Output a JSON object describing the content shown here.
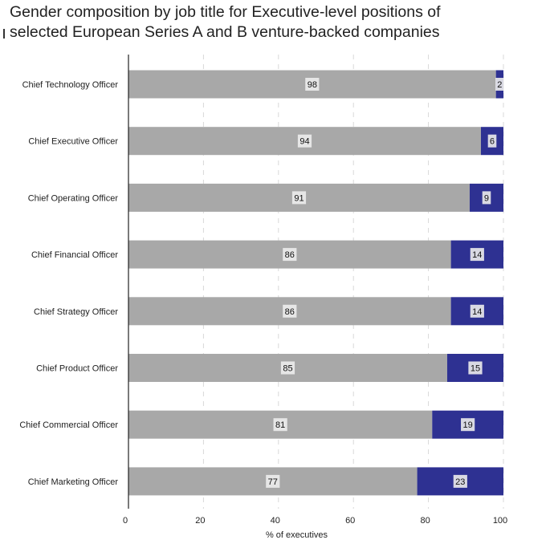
{
  "chart_data": {
    "type": "bar",
    "orientation": "horizontal",
    "stacked": true,
    "title": "Gender composition by job title for Executive-level positions of selected European Series A and B venture-backed companies",
    "title_lines": [
      "Gender composition by job title for Executive-level positions of",
      "selected European Series A and B venture-backed companies"
    ],
    "xlabel": "% of executives",
    "ylabel": "",
    "xlim": [
      0,
      100
    ],
    "xticks": [
      0,
      20,
      40,
      60,
      80,
      100
    ],
    "grid": "vertical dashed",
    "legend": "none",
    "categories": [
      "Chief Technology Officer",
      "Chief Executive Officer",
      "Chief Operating Officer",
      "Chief Financial Officer",
      "Chief Strategy Officer",
      "Chief Product Officer",
      "Chief Commercial Officer",
      "Chief Marketing Officer"
    ],
    "series": [
      {
        "values": [
          98,
          94,
          91,
          86,
          86,
          85,
          81,
          77
        ],
        "color": "#a8a8a8"
      },
      {
        "values": [
          2,
          6,
          9,
          14,
          14,
          15,
          19,
          23
        ],
        "color": "#2e3192"
      }
    ]
  }
}
